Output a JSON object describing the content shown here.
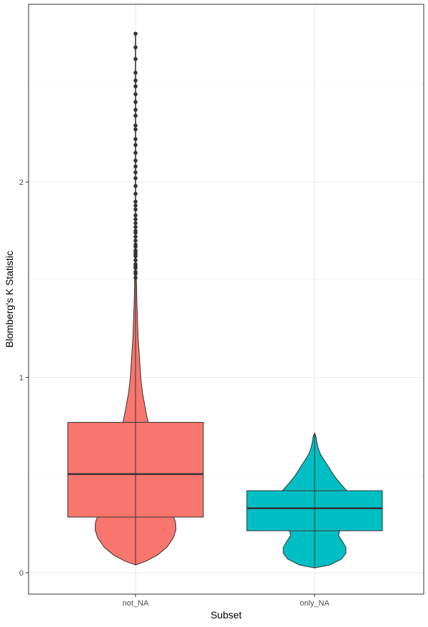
{
  "chart_data": {
    "type": "violin",
    "overlay": "boxplot",
    "xlabel": "Subset",
    "ylabel": "Blomberg's K Statistic",
    "categories": [
      "not_NA",
      "only_NA"
    ],
    "yticks": [
      0,
      1,
      2
    ],
    "ylim": [
      -0.11,
      2.91
    ],
    "grid": true,
    "legend": "none",
    "series": [
      {
        "category": "not_NA",
        "color": "#F8766D",
        "box": {
          "min": 0.04,
          "q1": 0.285,
          "median": 0.505,
          "q3": 0.77,
          "max": 1.5
        },
        "violin": [
          [
            0.04,
            0.0
          ],
          [
            0.06,
            0.25
          ],
          [
            0.09,
            0.5
          ],
          [
            0.13,
            0.72
          ],
          [
            0.18,
            0.87
          ],
          [
            0.22,
            0.93
          ],
          [
            0.26,
            0.92
          ],
          [
            0.3,
            0.85
          ],
          [
            0.34,
            0.75
          ],
          [
            0.38,
            0.63
          ],
          [
            0.42,
            0.53
          ],
          [
            0.46,
            0.45
          ],
          [
            0.5,
            0.4
          ],
          [
            0.55,
            0.38
          ],
          [
            0.6,
            0.37
          ],
          [
            0.65,
            0.36
          ],
          [
            0.7,
            0.34
          ],
          [
            0.75,
            0.31
          ],
          [
            0.8,
            0.26
          ],
          [
            0.86,
            0.21
          ],
          [
            0.92,
            0.16
          ],
          [
            1.0,
            0.12
          ],
          [
            1.1,
            0.09
          ],
          [
            1.2,
            0.06
          ],
          [
            1.3,
            0.045
          ],
          [
            1.4,
            0.03
          ],
          [
            1.5,
            0.02
          ],
          [
            1.6,
            0.008
          ],
          [
            1.7,
            0.0
          ]
        ],
        "outliers": [
          1.51,
          1.53,
          1.54,
          1.56,
          1.57,
          1.58,
          1.6,
          1.62,
          1.63,
          1.64,
          1.65,
          1.67,
          1.68,
          1.7,
          1.72,
          1.74,
          1.75,
          1.77,
          1.79,
          1.81,
          1.83,
          1.86,
          1.88,
          1.9,
          1.94,
          1.98,
          2.02,
          2.05,
          2.08,
          2.11,
          2.15,
          2.19,
          2.22,
          2.27,
          2.29,
          2.34,
          2.37,
          2.41,
          2.45,
          2.49,
          2.52,
          2.56,
          2.63,
          2.69,
          2.76
        ]
      },
      {
        "category": "only_NA",
        "color": "#00BFC4",
        "box": {
          "min": 0.025,
          "q1": 0.215,
          "median": 0.33,
          "q3": 0.42,
          "max": 0.715
        },
        "violin": [
          [
            0.025,
            0.0
          ],
          [
            0.04,
            0.35
          ],
          [
            0.07,
            0.62
          ],
          [
            0.1,
            0.72
          ],
          [
            0.13,
            0.72
          ],
          [
            0.16,
            0.64
          ],
          [
            0.19,
            0.55
          ],
          [
            0.22,
            0.58
          ],
          [
            0.25,
            0.72
          ],
          [
            0.28,
            0.86
          ],
          [
            0.31,
            0.92
          ],
          [
            0.34,
            0.93
          ],
          [
            0.37,
            0.9
          ],
          [
            0.4,
            0.82
          ],
          [
            0.43,
            0.7
          ],
          [
            0.46,
            0.58
          ],
          [
            0.49,
            0.47
          ],
          [
            0.52,
            0.38
          ],
          [
            0.55,
            0.3
          ],
          [
            0.58,
            0.21
          ],
          [
            0.61,
            0.13
          ],
          [
            0.64,
            0.08
          ],
          [
            0.67,
            0.05
          ],
          [
            0.7,
            0.03
          ],
          [
            0.715,
            0.0
          ]
        ],
        "outliers": []
      }
    ]
  }
}
